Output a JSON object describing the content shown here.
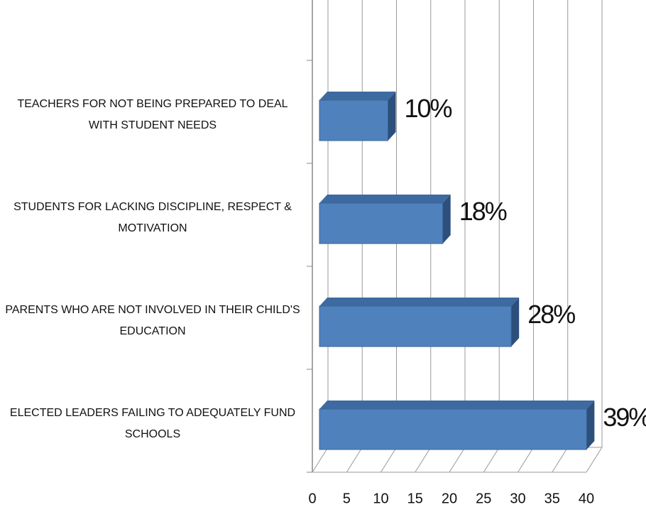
{
  "chart_data": {
    "type": "bar",
    "orientation": "horizontal",
    "categories": [
      "TEACHERS FOR NOT BEING PREPARED TO DEAL WITH STUDENT NEEDS",
      "STUDENTS FOR LACKING DISCIPLINE, RESPECT & MOTIVATION",
      "PARENTS WHO ARE NOT INVOLVED IN THEIR CHILD'S EDUCATION",
      "ELECTED LEADERS FAILING TO ADEQUATELY FUND SCHOOLS"
    ],
    "values": [
      10,
      18,
      28,
      39
    ],
    "value_labels": [
      "10%",
      "18%",
      "28%",
      "39%"
    ],
    "color": "#4f81bd",
    "xlim": [
      0,
      40
    ],
    "xticks": [
      0,
      5,
      10,
      15,
      20,
      25,
      30,
      35,
      40
    ],
    "grid": true
  }
}
